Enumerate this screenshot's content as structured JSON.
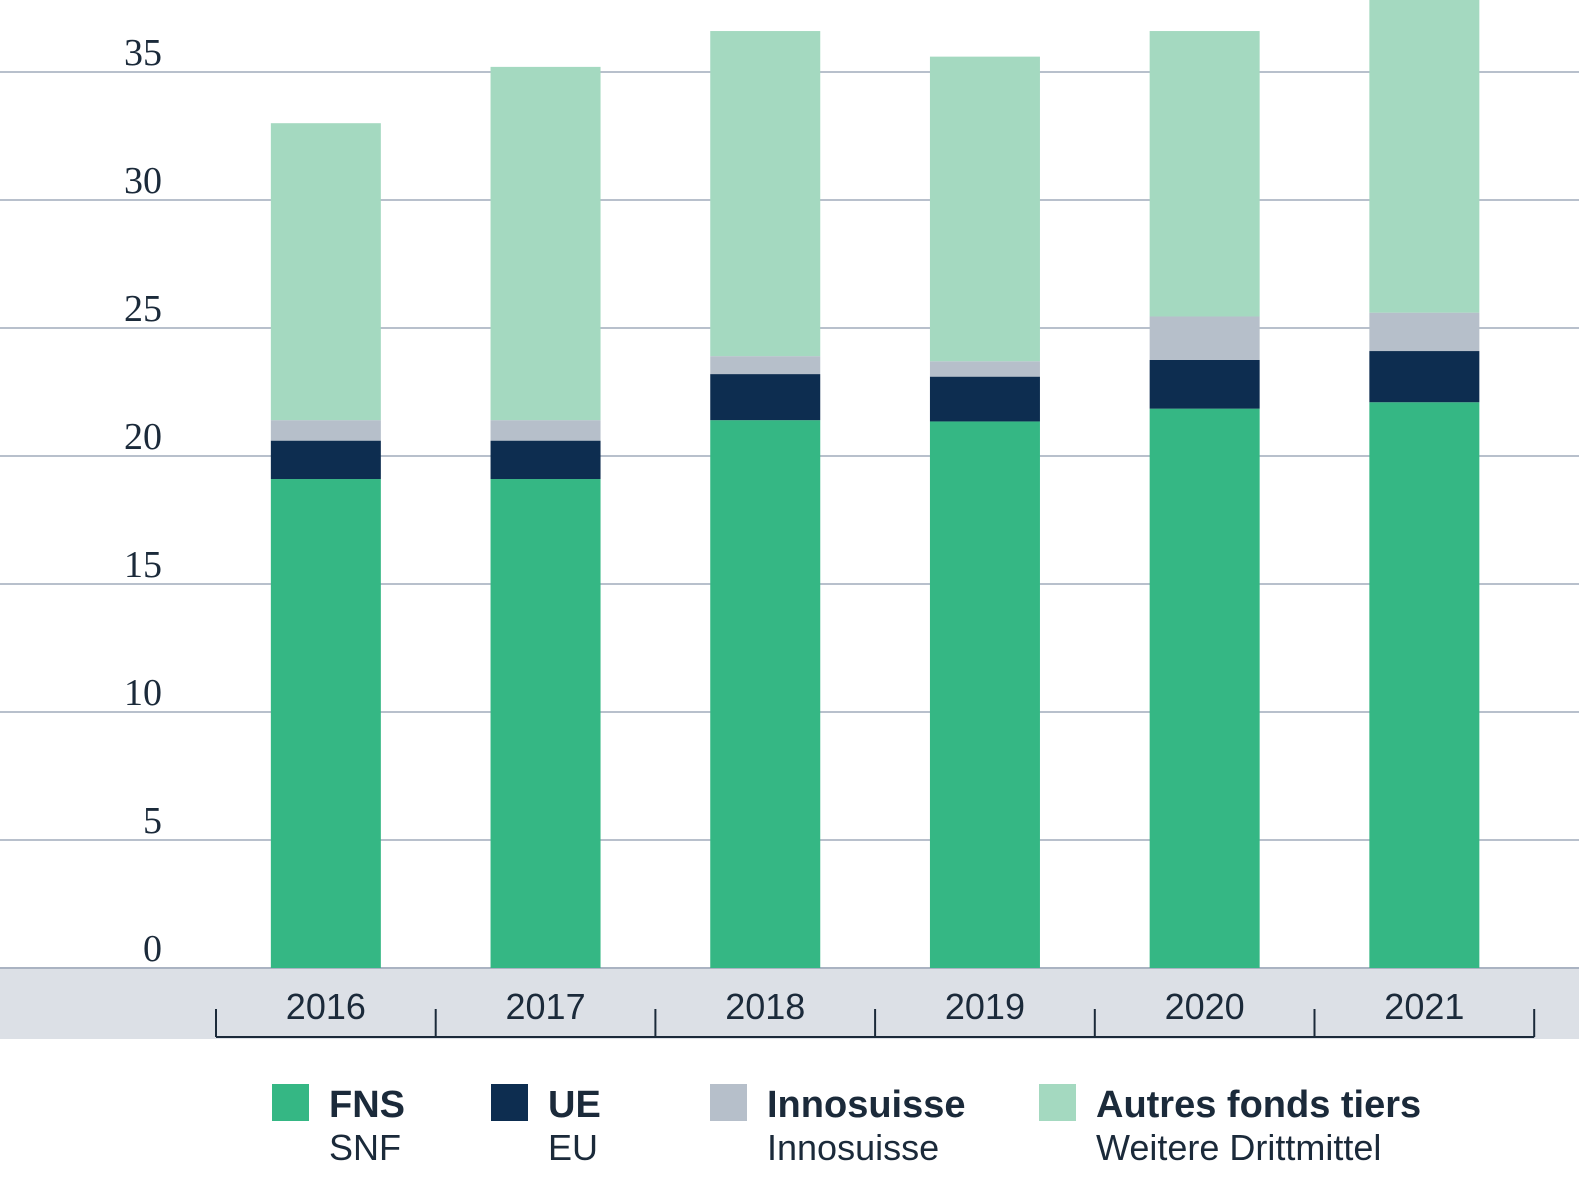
{
  "chart_data": {
    "type": "bar",
    "stacked": true,
    "categories": [
      "2016",
      "2017",
      "2018",
      "2019",
      "2020",
      "2021"
    ],
    "series": [
      {
        "name": "FNS",
        "name_de": "SNF",
        "color": "#35b784",
        "values": [
          19.1,
          19.1,
          21.4,
          21.35,
          21.85,
          22.1
        ]
      },
      {
        "name": "UE",
        "name_de": "EU",
        "color": "#0d2d50",
        "values": [
          1.5,
          1.5,
          1.8,
          1.75,
          1.9,
          2.0
        ]
      },
      {
        "name": "Innosuisse",
        "name_de": "Innosuisse",
        "color": "#b6bfca",
        "values": [
          0.8,
          0.8,
          0.7,
          0.6,
          1.7,
          1.5
        ]
      },
      {
        "name": "Autres fonds tiers",
        "name_de": "Weitere Drittmittel",
        "color": "#a4d9c0",
        "values": [
          11.6,
          13.8,
          12.7,
          11.9,
          11.15,
          12.4
        ]
      }
    ],
    "yticks": [
      0,
      5,
      10,
      15,
      20,
      25,
      30,
      35
    ],
    "ylim": [
      0,
      37.8
    ],
    "grid": true,
    "legend_position": "bottom"
  }
}
